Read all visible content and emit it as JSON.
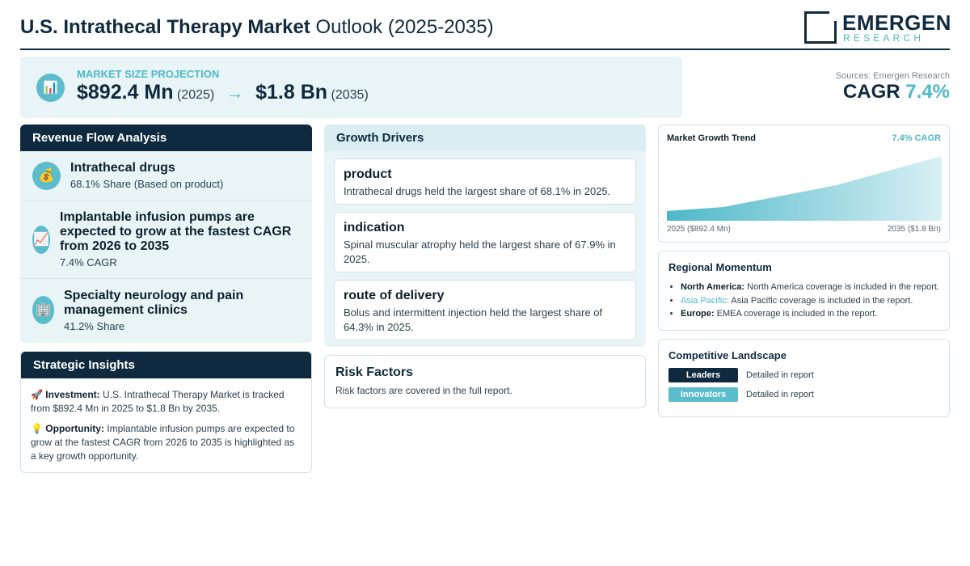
{
  "header": {
    "title_bold": "U.S. Intrathecal Therapy Market",
    "title_rest": "Outlook (2025-2035)",
    "logo_name": "EMERGEN",
    "logo_sub": "RESEARCH"
  },
  "projection": {
    "icon": "bar-chart-icon",
    "label": "MARKET SIZE PROJECTION",
    "start_value": "$892.4 Mn",
    "start_year": "(2025)",
    "arrow": "→",
    "end_value": "$1.8 Bn",
    "end_year": "(2035)"
  },
  "sources": "Sources: Emergen Research",
  "cagr": {
    "label": "CAGR",
    "value": "7.4%"
  },
  "revenue_flow": {
    "title": "Revenue Flow Analysis",
    "items": [
      {
        "icon": "money-bag-icon",
        "title": "Intrathecal drugs",
        "sub": "68.1% Share (Based on product)"
      },
      {
        "icon": "trend-chart-icon",
        "title": "Implantable infusion pumps are expected to grow at the fastest CAGR from 2026 to 2035",
        "sub": "7.4% CAGR"
      },
      {
        "icon": "building-icon",
        "title": "Specialty neurology and pain management clinics",
        "sub": "41.2% Share"
      }
    ]
  },
  "strategic_insights": {
    "title": "Strategic Insights",
    "investment_label": "Investment:",
    "investment_text": "U.S. Intrathecal Therapy Market is tracked from $892.4 Mn in 2025 to $1.8 Bn by 2035.",
    "opportunity_label": "Opportunity:",
    "opportunity_text": "Implantable infusion pumps are expected to grow at the fastest CAGR from 2026 to 2035 is highlighted as a key growth opportunity."
  },
  "growth_drivers": {
    "title": "Growth Drivers",
    "cards": [
      {
        "title": "product",
        "text": "Intrathecal drugs held the largest share of 68.1% in 2025."
      },
      {
        "title": "indication",
        "text": "Spinal muscular atrophy held the largest share of 67.9% in 2025."
      },
      {
        "title": "route of delivery",
        "text": "Bolus and intermittent injection held the largest share of 64.3% in 2025."
      }
    ]
  },
  "risk_factors": {
    "title": "Risk Factors",
    "text": "Risk factors are covered in the full report."
  },
  "market_trend": {
    "title": "Market Growth Trend",
    "cagr_label": "7.4% CAGR",
    "start_label": "2025 ($892.4 Mn)",
    "end_label": "2035 ($1.8 Bn)",
    "colors": {
      "fill_top": "#4db8c9",
      "fill_bottom": "#d9f0f4"
    }
  },
  "regional": {
    "title": "Regional Momentum",
    "items": [
      {
        "region": "North America:",
        "text": "North America coverage is included in the report."
      },
      {
        "region": "Asia Pacific:",
        "text": "Asia Pacific coverage is included in the report."
      },
      {
        "region": "Europe:",
        "text": "EMEA coverage is included in the report."
      }
    ]
  },
  "competitive": {
    "title": "Competitive Landscape",
    "rows": [
      {
        "badge": "Leaders",
        "desc": "Detailed in report",
        "color": "#0f2a3f"
      },
      {
        "badge": "Innovators",
        "desc": "Detailed in report",
        "color": "#5bbccc"
      }
    ]
  }
}
